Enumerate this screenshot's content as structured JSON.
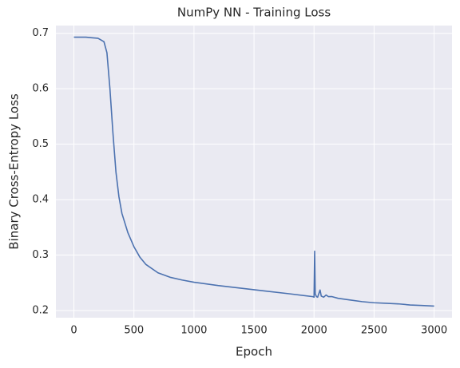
{
  "chart_data": {
    "type": "line",
    "title": "NumPy NN - Training Loss",
    "x_label": "Epoch",
    "y_label": "Binary Cross-Entropy Loss",
    "x": [
      0,
      50,
      100,
      150,
      200,
      250,
      275,
      300,
      325,
      350,
      375,
      400,
      450,
      500,
      550,
      600,
      700,
      800,
      900,
      1000,
      1200,
      1400,
      1600,
      1800,
      1990,
      2000,
      2005,
      2010,
      2020,
      2030,
      2050,
      2060,
      2080,
      2100,
      2120,
      2150,
      2200,
      2300,
      2400,
      2500,
      2600,
      2700,
      2800,
      2900,
      3000
    ],
    "series": [
      {
        "name": "loss",
        "color": "#4c72b0",
        "values": [
          0.693,
          0.693,
          0.693,
          0.692,
          0.691,
          0.685,
          0.665,
          0.6,
          0.52,
          0.45,
          0.405,
          0.375,
          0.34,
          0.315,
          0.296,
          0.283,
          0.268,
          0.26,
          0.255,
          0.251,
          0.245,
          0.24,
          0.235,
          0.23,
          0.225,
          0.224,
          0.307,
          0.23,
          0.225,
          0.224,
          0.237,
          0.226,
          0.224,
          0.228,
          0.225,
          0.225,
          0.222,
          0.219,
          0.216,
          0.214,
          0.213,
          0.212,
          0.21,
          0.209,
          0.208
        ]
      }
    ],
    "xlim": [
      -150,
      3149
    ],
    "ylim": [
      0.187,
      0.714
    ],
    "xticks": [
      0,
      500,
      1000,
      1500,
      2000,
      2500,
      3000
    ],
    "yticks": [
      0.2,
      0.3,
      0.4,
      0.5,
      0.6,
      0.7
    ],
    "grid": true,
    "background": "#eaeaf2"
  }
}
